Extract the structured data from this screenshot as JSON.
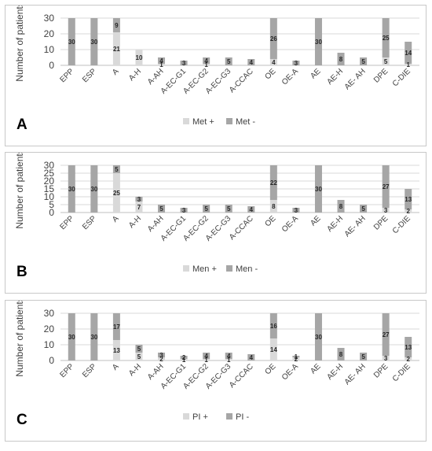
{
  "colors": {
    "plus": "#d9d9d9",
    "minus": "#a6a6a6",
    "grid": "#d9d9d9"
  },
  "chart_data": [
    {
      "type": "bar",
      "stacked": true,
      "panel_label": "A",
      "ylabel": "Number of patients",
      "ylim": [
        0,
        30
      ],
      "yticks": [
        0,
        10,
        20,
        30
      ],
      "categories": [
        "EPP",
        "ESP",
        "A",
        "A-H",
        "A-AH",
        "A-EC-G1",
        "A-EC-G2",
        "A-EC-G3",
        "A-CCAC",
        "OE",
        "OE-A",
        "AE",
        "AE-H",
        "AE- AH",
        "DPE",
        "C-DIE"
      ],
      "series": [
        {
          "name": "Met +",
          "values": [
            0,
            0,
            21,
            10,
            1,
            0,
            1,
            0,
            0,
            4,
            0,
            0,
            0,
            0,
            5,
            1
          ],
          "labels": [
            "",
            "",
            "21",
            "10",
            "1",
            "",
            "1",
            "",
            "",
            "4",
            "",
            "",
            "",
            "",
            "5",
            "1"
          ]
        },
        {
          "name": "Met -",
          "values": [
            30,
            30,
            9,
            0,
            4,
            3,
            4,
            5,
            4,
            26,
            3,
            30,
            8,
            5,
            25,
            14
          ],
          "labels": [
            "30",
            "30",
            "9",
            "",
            "4",
            "3",
            "4",
            "5",
            "4",
            "26",
            "3",
            "30",
            "8",
            "5",
            "25",
            "14"
          ]
        }
      ],
      "legend": "bottom",
      "grid": true
    },
    {
      "type": "bar",
      "stacked": true,
      "panel_label": "B",
      "ylabel": "Number of patients",
      "ylim": [
        0,
        30
      ],
      "yticks": [
        0,
        5,
        10,
        15,
        20,
        25,
        30
      ],
      "categories": [
        "EPP",
        "ESP",
        "A",
        "A-H",
        "A-AH",
        "A-EC-G1",
        "A-EC-G2",
        "A-EC-G3",
        "A-CCAC",
        "OE",
        "OE-A",
        "AE",
        "AE-H",
        "AE- AH",
        "DPE",
        "C-DIE"
      ],
      "series": [
        {
          "name": "Men +",
          "values": [
            0,
            0,
            25,
            7,
            0,
            0,
            0,
            0,
            0,
            8,
            0,
            0,
            0,
            0,
            3,
            2
          ],
          "labels": [
            "",
            "",
            "25",
            "7",
            "",
            "",
            "",
            "",
            "",
            "8",
            "",
            "",
            "",
            "",
            "3",
            "2"
          ]
        },
        {
          "name": "Men -",
          "values": [
            30,
            30,
            5,
            3,
            5,
            3,
            5,
            5,
            4,
            22,
            3,
            30,
            8,
            5,
            27,
            13
          ],
          "labels": [
            "30",
            "30",
            "5",
            "3",
            "5",
            "3",
            "5",
            "5",
            "4",
            "22",
            "3",
            "30",
            "8",
            "5",
            "27",
            "13"
          ]
        }
      ],
      "legend": "bottom",
      "grid": true
    },
    {
      "type": "bar",
      "stacked": true,
      "panel_label": "C",
      "ylabel": "Number of patients",
      "ylim": [
        0,
        30
      ],
      "yticks": [
        0,
        10,
        20,
        30
      ],
      "categories": [
        "EPP",
        "ESP",
        "A",
        "A-H",
        "A-AH",
        "A-EC-G1",
        "A-EC-G2",
        "A-EC-G3",
        "A-CCAC",
        "OE",
        "OE-A",
        "AE",
        "AE-H",
        "AE- AH",
        "DPE",
        "C-DIE"
      ],
      "series": [
        {
          "name": "PI +",
          "values": [
            0,
            0,
            13,
            5,
            2,
            1,
            1,
            1,
            0,
            14,
            2,
            0,
            0,
            0,
            3,
            2
          ],
          "labels": [
            "",
            "",
            "13",
            "5",
            "2",
            "1",
            "1",
            "1",
            "",
            "14",
            "2",
            "",
            "",
            "",
            "3",
            "2"
          ]
        },
        {
          "name": "PI -",
          "values": [
            30,
            30,
            17,
            5,
            3,
            2,
            4,
            4,
            4,
            16,
            1,
            30,
            8,
            5,
            27,
            13
          ],
          "labels": [
            "30",
            "30",
            "17",
            "5",
            "3",
            "2",
            "4",
            "4",
            "4",
            "16",
            "1",
            "30",
            "8",
            "5",
            "27",
            "13"
          ]
        }
      ],
      "legend": "bottom",
      "grid": true
    }
  ]
}
